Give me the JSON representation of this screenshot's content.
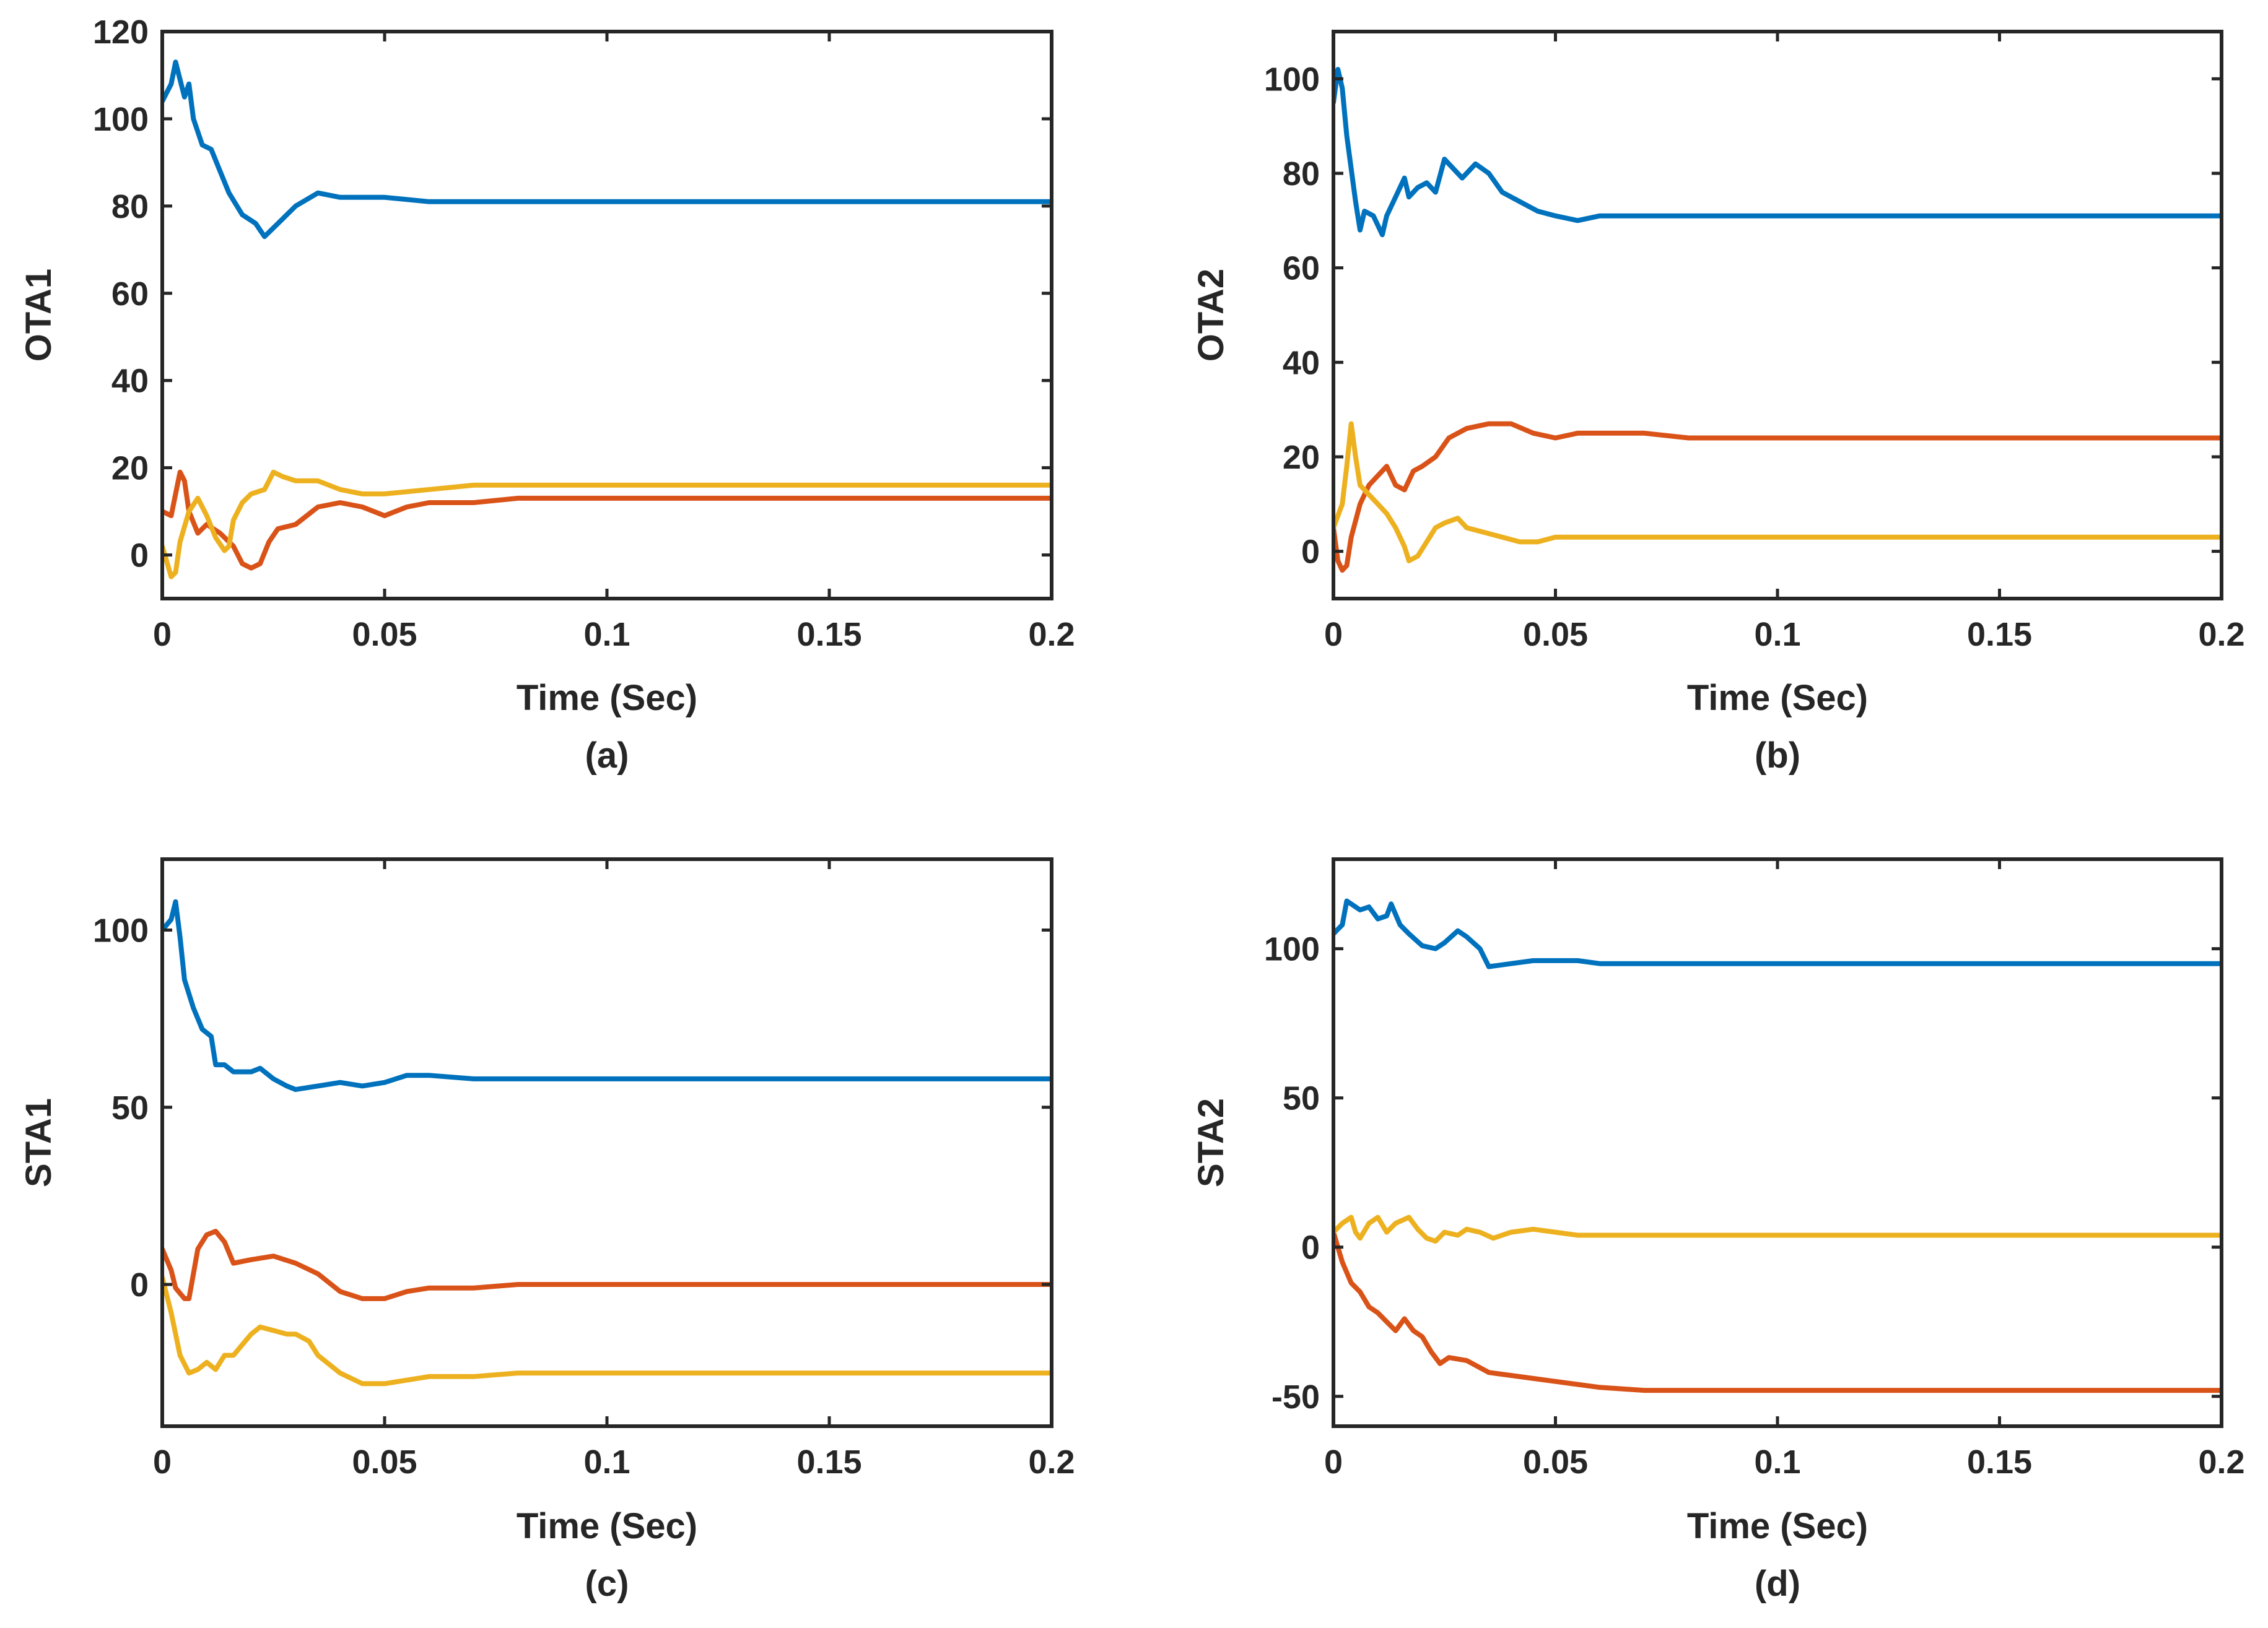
{
  "figure": {
    "series_colors": [
      "#0072BD",
      "#D95319",
      "#EDB120"
    ]
  },
  "chart_data": [
    {
      "id": "a",
      "type": "line",
      "caption": "(a)",
      "xlabel": "Time (Sec)",
      "ylabel": "OTA1",
      "xlim": [
        0,
        0.2
      ],
      "ylim": [
        -10,
        120
      ],
      "xticks": [
        0,
        0.05,
        0.1,
        0.15,
        0.2
      ],
      "xtick_labels": [
        "0",
        "0.05",
        "0.1",
        "0.15",
        "0.2"
      ],
      "yticks": [
        0,
        20,
        40,
        60,
        80,
        100,
        120
      ],
      "ytick_labels": [
        "0",
        "20",
        "40",
        "60",
        "80",
        "100",
        "120"
      ],
      "series": [
        {
          "name": "blue",
          "color": "#0072BD",
          "x": [
            0,
            0.002,
            0.003,
            0.004,
            0.005,
            0.006,
            0.007,
            0.009,
            0.011,
            0.013,
            0.015,
            0.018,
            0.021,
            0.023,
            0.025,
            0.027,
            0.03,
            0.035,
            0.04,
            0.05,
            0.06,
            0.07,
            0.08,
            0.1,
            0.15,
            0.2
          ],
          "y": [
            104,
            108,
            113,
            109,
            105,
            108,
            100,
            94,
            93,
            88,
            83,
            78,
            76,
            73,
            75,
            77,
            80,
            83,
            82,
            82,
            81,
            81,
            81,
            81,
            81,
            81
          ]
        },
        {
          "name": "red",
          "color": "#D95319",
          "x": [
            0,
            0.002,
            0.003,
            0.004,
            0.005,
            0.006,
            0.008,
            0.01,
            0.013,
            0.016,
            0.018,
            0.02,
            0.022,
            0.024,
            0.026,
            0.03,
            0.035,
            0.04,
            0.045,
            0.05,
            0.055,
            0.06,
            0.07,
            0.08,
            0.1,
            0.15,
            0.2
          ],
          "y": [
            10,
            9,
            14,
            19,
            17,
            10,
            5,
            7,
            5,
            2,
            -2,
            -3,
            -2,
            3,
            6,
            7,
            11,
            12,
            11,
            9,
            11,
            12,
            12,
            13,
            13,
            13,
            13
          ]
        },
        {
          "name": "yellow",
          "color": "#EDB120",
          "x": [
            0,
            0.002,
            0.003,
            0.004,
            0.006,
            0.008,
            0.01,
            0.012,
            0.014,
            0.015,
            0.016,
            0.018,
            0.02,
            0.023,
            0.025,
            0.027,
            0.03,
            0.035,
            0.04,
            0.045,
            0.05,
            0.06,
            0.07,
            0.08,
            0.1,
            0.15,
            0.2
          ],
          "y": [
            2,
            -5,
            -4,
            3,
            10,
            13,
            9,
            4,
            1,
            2,
            8,
            12,
            14,
            15,
            19,
            18,
            17,
            17,
            15,
            14,
            14,
            15,
            16,
            16,
            16,
            16,
            16
          ]
        }
      ]
    },
    {
      "id": "b",
      "type": "line",
      "caption": "(b)",
      "xlabel": "Time (Sec)",
      "ylabel": "OTA2",
      "xlim": [
        0,
        0.2
      ],
      "ylim": [
        -10,
        110
      ],
      "xticks": [
        0,
        0.05,
        0.1,
        0.15,
        0.2
      ],
      "xtick_labels": [
        "0",
        "0.05",
        "0.1",
        "0.15",
        "0.2"
      ],
      "yticks": [
        0,
        20,
        40,
        60,
        80,
        100
      ],
      "ytick_labels": [
        "0",
        "20",
        "40",
        "60",
        "80",
        "100"
      ],
      "series": [
        {
          "name": "blue",
          "color": "#0072BD",
          "x": [
            0,
            0.001,
            0.002,
            0.003,
            0.005,
            0.006,
            0.007,
            0.009,
            0.011,
            0.012,
            0.014,
            0.016,
            0.017,
            0.019,
            0.021,
            0.023,
            0.025,
            0.027,
            0.029,
            0.032,
            0.035,
            0.038,
            0.042,
            0.046,
            0.05,
            0.055,
            0.06,
            0.07,
            0.08,
            0.1,
            0.15,
            0.2
          ],
          "y": [
            95,
            102,
            98,
            88,
            74,
            68,
            72,
            71,
            67,
            71,
            75,
            79,
            75,
            77,
            78,
            76,
            83,
            81,
            79,
            82,
            80,
            76,
            74,
            72,
            71,
            70,
            71,
            71,
            71,
            71,
            71,
            71
          ]
        },
        {
          "name": "red",
          "color": "#D95319",
          "x": [
            0,
            0.001,
            0.002,
            0.003,
            0.004,
            0.006,
            0.008,
            0.01,
            0.012,
            0.014,
            0.016,
            0.018,
            0.02,
            0.023,
            0.026,
            0.03,
            0.035,
            0.04,
            0.045,
            0.05,
            0.055,
            0.06,
            0.07,
            0.08,
            0.1,
            0.15,
            0.2
          ],
          "y": [
            5,
            -2,
            -4,
            -3,
            3,
            10,
            14,
            16,
            18,
            14,
            13,
            17,
            18,
            20,
            24,
            26,
            27,
            27,
            25,
            24,
            25,
            25,
            25,
            24,
            24,
            24,
            24
          ]
        },
        {
          "name": "yellow",
          "color": "#EDB120",
          "x": [
            0,
            0.002,
            0.003,
            0.004,
            0.005,
            0.006,
            0.008,
            0.01,
            0.012,
            0.014,
            0.016,
            0.017,
            0.019,
            0.021,
            0.023,
            0.025,
            0.028,
            0.03,
            0.034,
            0.038,
            0.042,
            0.046,
            0.05,
            0.06,
            0.07,
            0.08,
            0.1,
            0.15,
            0.2
          ],
          "y": [
            5,
            10,
            18,
            27,
            20,
            14,
            12,
            10,
            8,
            5,
            1,
            -2,
            -1,
            2,
            5,
            6,
            7,
            5,
            4,
            3,
            2,
            2,
            3,
            3,
            3,
            3,
            3,
            3,
            3
          ]
        }
      ]
    },
    {
      "id": "c",
      "type": "line",
      "caption": "(c)",
      "xlabel": "Time (Sec)",
      "ylabel": "STA1",
      "xlim": [
        0,
        0.2
      ],
      "ylim": [
        -40,
        120
      ],
      "xticks": [
        0,
        0.05,
        0.1,
        0.15,
        0.2
      ],
      "xtick_labels": [
        "0",
        "0.05",
        "0.1",
        "0.15",
        "0.2"
      ],
      "yticks": [
        0,
        50,
        100
      ],
      "ytick_labels": [
        "0",
        "50",
        "100"
      ],
      "series": [
        {
          "name": "blue",
          "color": "#0072BD",
          "x": [
            0,
            0.002,
            0.003,
            0.004,
            0.005,
            0.007,
            0.009,
            0.011,
            0.012,
            0.014,
            0.016,
            0.02,
            0.022,
            0.025,
            0.028,
            0.03,
            0.035,
            0.04,
            0.045,
            0.05,
            0.055,
            0.06,
            0.07,
            0.08,
            0.1,
            0.15,
            0.2
          ],
          "y": [
            100,
            103,
            108,
            98,
            86,
            78,
            72,
            70,
            62,
            62,
            60,
            60,
            61,
            58,
            56,
            55,
            56,
            57,
            56,
            57,
            59,
            59,
            58,
            58,
            58,
            58,
            58
          ]
        },
        {
          "name": "red",
          "color": "#D95319",
          "x": [
            0,
            0.002,
            0.003,
            0.005,
            0.006,
            0.007,
            0.008,
            0.01,
            0.012,
            0.014,
            0.016,
            0.02,
            0.025,
            0.03,
            0.035,
            0.04,
            0.045,
            0.05,
            0.055,
            0.06,
            0.07,
            0.08,
            0.1,
            0.15,
            0.2
          ],
          "y": [
            10,
            4,
            -1,
            -4,
            -4,
            3,
            10,
            14,
            15,
            12,
            6,
            7,
            8,
            6,
            3,
            -2,
            -4,
            -4,
            -2,
            -1,
            -1,
            0,
            0,
            0,
            0
          ]
        },
        {
          "name": "yellow",
          "color": "#EDB120",
          "x": [
            0,
            0.002,
            0.004,
            0.006,
            0.008,
            0.01,
            0.012,
            0.014,
            0.016,
            0.018,
            0.02,
            0.022,
            0.025,
            0.028,
            0.03,
            0.033,
            0.035,
            0.04,
            0.045,
            0.05,
            0.055,
            0.06,
            0.07,
            0.08,
            0.1,
            0.15,
            0.2
          ],
          "y": [
            2,
            -8,
            -20,
            -25,
            -24,
            -22,
            -24,
            -20,
            -20,
            -17,
            -14,
            -12,
            -13,
            -14,
            -14,
            -16,
            -20,
            -25,
            -28,
            -28,
            -27,
            -26,
            -26,
            -25,
            -25,
            -25,
            -25
          ]
        }
      ]
    },
    {
      "id": "d",
      "type": "line",
      "caption": "(d)",
      "xlabel": "Time (Sec)",
      "ylabel": "STA2",
      "xlim": [
        0,
        0.2
      ],
      "ylim": [
        -60,
        130
      ],
      "xticks": [
        0,
        0.05,
        0.1,
        0.15,
        0.2
      ],
      "xtick_labels": [
        "0",
        "0.05",
        "0.1",
        "0.15",
        "0.2"
      ],
      "yticks": [
        -50,
        0,
        50,
        100
      ],
      "ytick_labels": [
        "-50",
        "0",
        "50",
        "100"
      ],
      "series": [
        {
          "name": "blue",
          "color": "#0072BD",
          "x": [
            0,
            0.002,
            0.003,
            0.004,
            0.006,
            0.008,
            0.01,
            0.012,
            0.013,
            0.015,
            0.017,
            0.02,
            0.023,
            0.025,
            0.028,
            0.03,
            0.033,
            0.035,
            0.04,
            0.045,
            0.05,
            0.055,
            0.06,
            0.07,
            0.08,
            0.1,
            0.15,
            0.2
          ],
          "y": [
            105,
            108,
            116,
            115,
            113,
            114,
            110,
            111,
            115,
            108,
            105,
            101,
            100,
            102,
            106,
            104,
            100,
            94,
            95,
            96,
            96,
            96,
            95,
            95,
            95,
            95,
            95,
            95
          ]
        },
        {
          "name": "red",
          "color": "#D95319",
          "x": [
            0,
            0.002,
            0.004,
            0.006,
            0.008,
            0.01,
            0.012,
            0.014,
            0.016,
            0.018,
            0.02,
            0.022,
            0.024,
            0.026,
            0.03,
            0.035,
            0.04,
            0.045,
            0.05,
            0.055,
            0.06,
            0.07,
            0.08,
            0.1,
            0.15,
            0.2
          ],
          "y": [
            5,
            -5,
            -12,
            -15,
            -20,
            -22,
            -25,
            -28,
            -24,
            -28,
            -30,
            -35,
            -39,
            -37,
            -38,
            -42,
            -43,
            -44,
            -45,
            -46,
            -47,
            -48,
            -48,
            -48,
            -48,
            -48
          ]
        },
        {
          "name": "yellow",
          "color": "#EDB120",
          "x": [
            0,
            0.002,
            0.004,
            0.005,
            0.006,
            0.008,
            0.01,
            0.012,
            0.014,
            0.017,
            0.019,
            0.021,
            0.023,
            0.025,
            0.028,
            0.03,
            0.033,
            0.036,
            0.04,
            0.045,
            0.05,
            0.055,
            0.06,
            0.07,
            0.08,
            0.1,
            0.15,
            0.2
          ],
          "y": [
            5,
            8,
            10,
            5,
            3,
            8,
            10,
            5,
            8,
            10,
            6,
            3,
            2,
            5,
            4,
            6,
            5,
            3,
            5,
            6,
            5,
            4,
            4,
            4,
            4,
            4,
            4,
            4
          ]
        }
      ]
    }
  ]
}
